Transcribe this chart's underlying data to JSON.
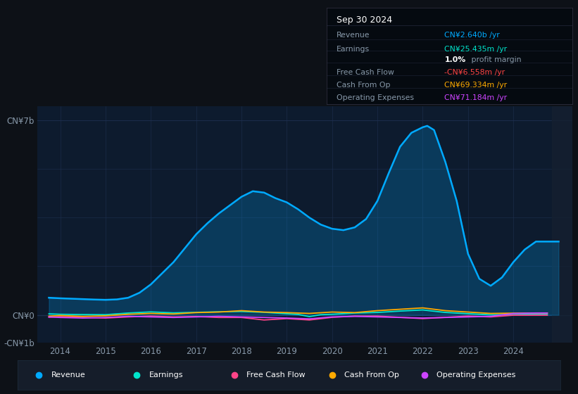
{
  "bg_color": "#0d1117",
  "plot_bg_color": "#0d1b2e",
  "grid_color": "#1e3050",
  "title_label": "Sep 30 2024",
  "ylim": [
    -1000000000.0,
    7500000000.0
  ],
  "ytick_positions": [
    -1000000000.0,
    0,
    7000000000.0
  ],
  "ytick_labels": [
    "-CN¥1b",
    "CN¥0",
    "CN¥7b"
  ],
  "xlim": [
    2013.5,
    2025.3
  ],
  "xticks": [
    2014,
    2015,
    2016,
    2017,
    2018,
    2019,
    2020,
    2021,
    2022,
    2023,
    2024
  ],
  "legend_items": [
    {
      "label": "Revenue",
      "color": "#00aaff"
    },
    {
      "label": "Earnings",
      "color": "#00e5cc"
    },
    {
      "label": "Free Cash Flow",
      "color": "#ff4488"
    },
    {
      "label": "Cash From Op",
      "color": "#ffaa00"
    },
    {
      "label": "Operating Expenses",
      "color": "#cc44ff"
    }
  ],
  "revenue_x": [
    2013.75,
    2014.0,
    2014.25,
    2014.5,
    2014.75,
    2015.0,
    2015.25,
    2015.5,
    2015.75,
    2016.0,
    2016.25,
    2016.5,
    2016.75,
    2017.0,
    2017.25,
    2017.5,
    2017.75,
    2018.0,
    2018.25,
    2018.5,
    2018.75,
    2019.0,
    2019.25,
    2019.5,
    2019.75,
    2020.0,
    2020.25,
    2020.5,
    2020.75,
    2021.0,
    2021.25,
    2021.5,
    2021.75,
    2022.0,
    2022.1,
    2022.25,
    2022.5,
    2022.75,
    2023.0,
    2023.25,
    2023.5,
    2023.75,
    2024.0,
    2024.25,
    2024.5,
    2024.75,
    2025.0
  ],
  "revenue_y": [
    620000000.0,
    600000000.0,
    585000000.0,
    570000000.0,
    555000000.0,
    545000000.0,
    560000000.0,
    620000000.0,
    800000000.0,
    1100000000.0,
    1500000000.0,
    1900000000.0,
    2400000000.0,
    2900000000.0,
    3300000000.0,
    3650000000.0,
    3950000000.0,
    4250000000.0,
    4450000000.0,
    4400000000.0,
    4200000000.0,
    4050000000.0,
    3800000000.0,
    3500000000.0,
    3250000000.0,
    3100000000.0,
    3050000000.0,
    3150000000.0,
    3450000000.0,
    4100000000.0,
    5100000000.0,
    6050000000.0,
    6550000000.0,
    6750000000.0,
    6800000000.0,
    6650000000.0,
    5500000000.0,
    4100000000.0,
    2200000000.0,
    1300000000.0,
    1050000000.0,
    1350000000.0,
    1900000000.0,
    2350000000.0,
    2640000000.0,
    2640000000.0,
    2640000000.0
  ],
  "earnings_x": [
    2013.75,
    2014.0,
    2014.5,
    2015.0,
    2015.5,
    2016.0,
    2016.5,
    2017.0,
    2017.5,
    2018.0,
    2018.5,
    2019.0,
    2019.25,
    2019.5,
    2019.75,
    2020.0,
    2020.5,
    2021.0,
    2021.5,
    2022.0,
    2022.5,
    2023.0,
    2023.5,
    2024.0,
    2024.5,
    2024.75
  ],
  "earnings_y": [
    40000000.0,
    25000000.0,
    15000000.0,
    10000000.0,
    70000000.0,
    110000000.0,
    75000000.0,
    95000000.0,
    115000000.0,
    125000000.0,
    95000000.0,
    45000000.0,
    20000000.0,
    -60000000.0,
    10000000.0,
    25000000.0,
    70000000.0,
    90000000.0,
    140000000.0,
    180000000.0,
    90000000.0,
    45000000.0,
    5000000.0,
    15000000.0,
    25000000.0,
    25000000.0
  ],
  "fcf_x": [
    2013.75,
    2014.0,
    2014.5,
    2015.0,
    2015.5,
    2016.0,
    2016.5,
    2017.0,
    2017.5,
    2018.0,
    2018.5,
    2019.0,
    2019.5,
    2020.0,
    2020.5,
    2021.0,
    2021.5,
    2022.0,
    2022.5,
    2023.0,
    2023.5,
    2024.0,
    2024.5,
    2024.75
  ],
  "fcf_y": [
    -80000000.0,
    -60000000.0,
    -90000000.0,
    -110000000.0,
    -70000000.0,
    -40000000.0,
    -70000000.0,
    -55000000.0,
    -90000000.0,
    -90000000.0,
    -180000000.0,
    -130000000.0,
    -180000000.0,
    -85000000.0,
    -40000000.0,
    -40000000.0,
    -85000000.0,
    -130000000.0,
    -85000000.0,
    -40000000.0,
    -70000000.0,
    -8000000.0,
    -6558000.0,
    -6558000.0
  ],
  "cfop_x": [
    2013.75,
    2014.0,
    2014.5,
    2015.0,
    2015.5,
    2016.0,
    2016.5,
    2017.0,
    2017.5,
    2018.0,
    2018.5,
    2019.0,
    2019.5,
    2020.0,
    2020.5,
    2021.0,
    2021.5,
    2022.0,
    2022.5,
    2023.0,
    2023.5,
    2024.0,
    2024.5,
    2024.75
  ],
  "cfop_y": [
    -40000000.0,
    -20000000.0,
    -50000000.0,
    -30000000.0,
    25000000.0,
    55000000.0,
    35000000.0,
    85000000.0,
    105000000.0,
    155000000.0,
    105000000.0,
    85000000.0,
    55000000.0,
    105000000.0,
    85000000.0,
    155000000.0,
    205000000.0,
    255000000.0,
    155000000.0,
    105000000.0,
    55000000.0,
    65000000.0,
    69334000.0,
    69334000.0
  ],
  "opex_x": [
    2013.75,
    2014.0,
    2014.5,
    2015.0,
    2015.5,
    2016.0,
    2016.5,
    2017.0,
    2017.5,
    2018.0,
    2018.5,
    2019.0,
    2019.5,
    2020.0,
    2020.5,
    2021.0,
    2021.5,
    2022.0,
    2022.5,
    2023.0,
    2023.5,
    2024.0,
    2024.5,
    2024.75
  ],
  "opex_y": [
    -70000000.0,
    -90000000.0,
    -110000000.0,
    -90000000.0,
    -50000000.0,
    -70000000.0,
    -90000000.0,
    -70000000.0,
    -50000000.0,
    -70000000.0,
    -90000000.0,
    -110000000.0,
    -140000000.0,
    -70000000.0,
    -50000000.0,
    -70000000.0,
    -90000000.0,
    -110000000.0,
    -90000000.0,
    -70000000.0,
    -50000000.0,
    55000000.0,
    71184000.0,
    71184000.0
  ]
}
